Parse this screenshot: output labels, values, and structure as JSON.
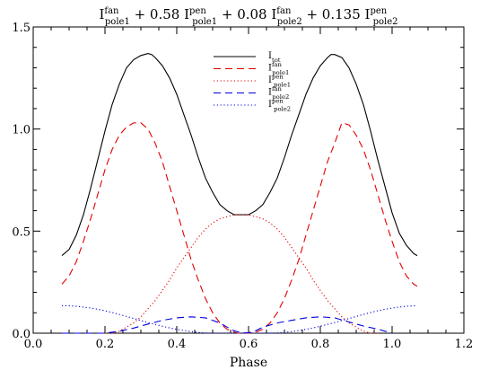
{
  "chart_data": {
    "type": "line",
    "title": {
      "terms": [
        {
          "coef": "",
          "sup": "fan",
          "sub": "pole1",
          "sep": ""
        },
        {
          "coef": "0.58 ",
          "sup": "pen",
          "sub": "pole1",
          "sep": " + "
        },
        {
          "coef": "0.08 ",
          "sup": "fan",
          "sub": "pole2",
          "sep": " + "
        },
        {
          "coef": "0.135 ",
          "sup": "pen",
          "sub": "pole2",
          "sep": " + "
        }
      ]
    },
    "xlabel": "Phase",
    "ylabel": "",
    "xlim": [
      0.0,
      1.2
    ],
    "ylim": [
      0.0,
      1.5
    ],
    "xticks": [
      "0.0",
      "0.2",
      "0.4",
      "0.6",
      "0.8",
      "1.0",
      "1.2"
    ],
    "yticks": [
      "0.0",
      "0.5",
      "1.0",
      "1.5"
    ],
    "legend_position": "top-center",
    "series": [
      {
        "legend": {
          "base": "I",
          "sup": "",
          "sub": "tot"
        },
        "color": "#000000",
        "dash": "solid",
        "x": [
          0.08,
          0.1,
          0.12,
          0.14,
          0.16,
          0.18,
          0.2,
          0.22,
          0.24,
          0.26,
          0.28,
          0.3,
          0.32,
          0.33,
          0.34,
          0.36,
          0.38,
          0.4,
          0.42,
          0.44,
          0.46,
          0.48,
          0.5,
          0.52,
          0.54,
          0.56,
          0.58,
          0.6,
          0.62,
          0.64,
          0.66,
          0.68,
          0.7,
          0.72,
          0.74,
          0.76,
          0.78,
          0.8,
          0.82,
          0.83,
          0.84,
          0.86,
          0.88,
          0.9,
          0.92,
          0.94,
          0.96,
          0.98,
          1.0,
          1.02,
          1.04,
          1.06,
          1.07
        ],
        "y": [
          0.38,
          0.41,
          0.48,
          0.58,
          0.71,
          0.85,
          0.99,
          1.12,
          1.22,
          1.3,
          1.34,
          1.36,
          1.37,
          1.365,
          1.35,
          1.31,
          1.25,
          1.17,
          1.07,
          0.97,
          0.86,
          0.76,
          0.69,
          0.63,
          0.6,
          0.58,
          0.58,
          0.58,
          0.6,
          0.63,
          0.69,
          0.76,
          0.86,
          0.97,
          1.07,
          1.17,
          1.25,
          1.31,
          1.35,
          1.365,
          1.365,
          1.35,
          1.3,
          1.22,
          1.12,
          0.99,
          0.85,
          0.72,
          0.59,
          0.49,
          0.43,
          0.39,
          0.38
        ]
      },
      {
        "legend": {
          "base": "I",
          "sup": "fan",
          "sub": "pole1"
        },
        "color": "#e00000",
        "dash": "long",
        "x": [
          0.08,
          0.1,
          0.12,
          0.14,
          0.16,
          0.18,
          0.2,
          0.22,
          0.24,
          0.26,
          0.28,
          0.3,
          0.32,
          0.34,
          0.36,
          0.38,
          0.4,
          0.42,
          0.44,
          0.46,
          0.48,
          0.5,
          0.52,
          0.54,
          0.56,
          0.57,
          0.58,
          0.6,
          0.62,
          0.64,
          0.66,
          0.68,
          0.7,
          0.72,
          0.74,
          0.76,
          0.78,
          0.8,
          0.82,
          0.84,
          0.86,
          0.88,
          0.9,
          0.92,
          0.94,
          0.96,
          0.98,
          1.0,
          1.02,
          1.04,
          1.06,
          1.07
        ],
        "y": [
          0.24,
          0.28,
          0.35,
          0.45,
          0.56,
          0.68,
          0.8,
          0.9,
          0.97,
          1.01,
          1.03,
          1.03,
          1.0,
          0.93,
          0.84,
          0.72,
          0.6,
          0.48,
          0.36,
          0.26,
          0.17,
          0.1,
          0.05,
          0.02,
          0.005,
          0.0,
          0.0,
          0.0,
          0.005,
          0.02,
          0.05,
          0.1,
          0.17,
          0.26,
          0.36,
          0.48,
          0.6,
          0.72,
          0.84,
          0.93,
          1.03,
          1.02,
          0.97,
          0.9,
          0.8,
          0.68,
          0.56,
          0.45,
          0.35,
          0.28,
          0.24,
          0.23
        ]
      },
      {
        "legend": {
          "base": "I",
          "sup": "pen",
          "sub": "pole1"
        },
        "color": "#e00000",
        "dash": "dot",
        "x": [
          0.2,
          0.22,
          0.24,
          0.26,
          0.28,
          0.3,
          0.32,
          0.34,
          0.36,
          0.38,
          0.4,
          0.42,
          0.44,
          0.46,
          0.48,
          0.5,
          0.52,
          0.54,
          0.56,
          0.58,
          0.6,
          0.62,
          0.64,
          0.66,
          0.68,
          0.7,
          0.72,
          0.74,
          0.76,
          0.78,
          0.8,
          0.82,
          0.84,
          0.86,
          0.88,
          0.9,
          0.92,
          0.94,
          0.96
        ],
        "y": [
          0.0,
          0.0,
          0.01,
          0.03,
          0.05,
          0.08,
          0.12,
          0.16,
          0.21,
          0.26,
          0.32,
          0.37,
          0.42,
          0.47,
          0.51,
          0.54,
          0.56,
          0.57,
          0.58,
          0.58,
          0.58,
          0.57,
          0.56,
          0.54,
          0.51,
          0.47,
          0.42,
          0.37,
          0.32,
          0.26,
          0.21,
          0.16,
          0.12,
          0.08,
          0.05,
          0.03,
          0.01,
          0.0,
          0.0
        ]
      },
      {
        "legend": {
          "base": "I",
          "sup": "fan",
          "sub": "pole2"
        },
        "color": "#0000e0",
        "dash": "long",
        "x": [
          0.08,
          0.12,
          0.16,
          0.2,
          0.24,
          0.28,
          0.32,
          0.36,
          0.4,
          0.44,
          0.48,
          0.52,
          0.54,
          0.56,
          0.58,
          0.6,
          0.62,
          0.64,
          0.68,
          0.72,
          0.76,
          0.8,
          0.84,
          0.88,
          0.92,
          0.96,
          1.0
        ],
        "y": [
          0.0,
          0.0,
          0.0,
          0.0,
          0.01,
          0.025,
          0.045,
          0.063,
          0.075,
          0.08,
          0.075,
          0.05,
          0.03,
          0.012,
          0.002,
          0.002,
          0.012,
          0.03,
          0.05,
          0.063,
          0.075,
          0.08,
          0.075,
          0.055,
          0.035,
          0.02,
          0.0
        ]
      },
      {
        "legend": {
          "base": "I",
          "sup": "pen",
          "sub": "pole2"
        },
        "color": "#0000e0",
        "dash": "dot",
        "x": [
          0.08,
          0.1,
          0.12,
          0.14,
          0.16,
          0.18,
          0.2,
          0.22,
          0.24,
          0.26,
          0.28,
          0.3,
          0.32,
          0.34,
          0.36,
          0.38,
          0.4,
          0.42,
          0.44,
          0.46,
          0.48,
          0.5,
          0.52,
          0.54,
          0.56,
          0.58,
          0.6,
          0.62,
          0.64,
          0.66,
          0.68,
          0.7,
          0.72,
          0.74,
          0.76,
          0.78,
          0.8,
          0.82,
          0.84,
          0.86,
          0.88,
          0.9,
          0.92,
          0.94,
          0.96,
          0.98,
          1.0,
          1.02,
          1.04,
          1.06,
          1.07
        ],
        "y": [
          0.135,
          0.134,
          0.132,
          0.128,
          0.123,
          0.117,
          0.11,
          0.101,
          0.092,
          0.082,
          0.072,
          0.062,
          0.052,
          0.043,
          0.034,
          0.026,
          0.019,
          0.013,
          0.008,
          0.004,
          0.001,
          0.0,
          0.0,
          0.0,
          0.0,
          0.0,
          0.0,
          0.0,
          0.0,
          0.0,
          0.001,
          0.004,
          0.008,
          0.013,
          0.019,
          0.026,
          0.034,
          0.043,
          0.052,
          0.062,
          0.072,
          0.082,
          0.092,
          0.101,
          0.11,
          0.117,
          0.123,
          0.128,
          0.132,
          0.134,
          0.135
        ]
      }
    ]
  }
}
